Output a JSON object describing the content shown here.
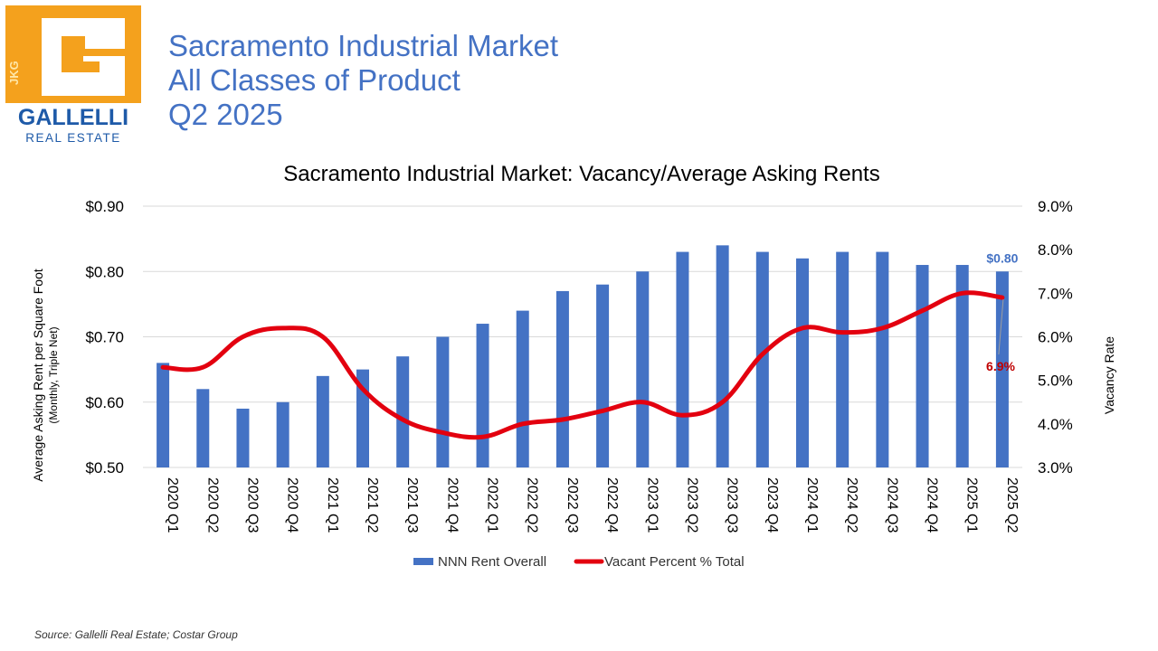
{
  "logo": {
    "letter_initials": "JKG",
    "brand_name": "GALLELLI",
    "brand_sub": "REAL ESTATE",
    "orange": "#F4A11D",
    "blue": "#1E5AA8"
  },
  "header": {
    "line1": "Sacramento Industrial Market",
    "line2": "All Classes of Product",
    "line3": "Q2 2025",
    "color": "#4472C4"
  },
  "chart_data": {
    "type": "bar+line",
    "title": "Sacramento Industrial Market: Vacancy/Average Asking Rents",
    "categories": [
      "2020 Q1",
      "2020 Q2",
      "2020 Q3",
      "2020 Q4",
      "2021 Q1",
      "2021 Q2",
      "2021 Q3",
      "2021 Q4",
      "2022 Q1",
      "2022 Q2",
      "2022 Q3",
      "2022 Q4",
      "2023 Q1",
      "2023 Q2",
      "2023 Q3",
      "2023 Q4",
      "2024 Q1",
      "2024 Q2",
      "2024 Q3",
      "2024 Q4",
      "2025 Q1",
      "2025 Q2"
    ],
    "y_left": {
      "label_line1": "Average Asking Rent per Square Foot",
      "label_line2": "(Monthly, Triple Net)",
      "lim": [
        0.5,
        0.9
      ],
      "ticks": [
        0.5,
        0.6,
        0.7,
        0.8,
        0.9
      ],
      "tick_labels": [
        "$0.50",
        "$0.60",
        "$0.70",
        "$0.80",
        "$0.90"
      ]
    },
    "y_right": {
      "label": "Vacancy Rate",
      "lim": [
        3.0,
        9.0
      ],
      "ticks": [
        3,
        4,
        5,
        6,
        7,
        8,
        9
      ],
      "tick_labels": [
        "3.0%",
        "4.0%",
        "5.0%",
        "6.0%",
        "7.0%",
        "8.0%",
        "9.0%"
      ]
    },
    "series": [
      {
        "name": "NNN Rent Overall",
        "kind": "bar",
        "axis": "left",
        "color": "#4472C4",
        "values": [
          0.66,
          0.62,
          0.59,
          0.6,
          0.64,
          0.65,
          0.67,
          0.7,
          0.72,
          0.74,
          0.77,
          0.78,
          0.8,
          0.83,
          0.84,
          0.83,
          0.82,
          0.83,
          0.83,
          0.81,
          0.81,
          0.8
        ],
        "last_label": "$0.80"
      },
      {
        "name": "Vacant Percent % Total",
        "kind": "line",
        "axis": "right",
        "color": "#E3000F",
        "values": [
          5.3,
          5.3,
          6.0,
          6.2,
          6.0,
          4.8,
          4.1,
          3.8,
          3.7,
          4.0,
          4.1,
          4.3,
          4.5,
          4.2,
          4.5,
          5.6,
          6.2,
          6.1,
          6.2,
          6.6,
          7.0,
          6.9
        ],
        "last_label": "6.9%"
      }
    ],
    "grid": true,
    "legend": "bottom"
  },
  "source": "Source: Gallelli Real Estate; Costar Group"
}
